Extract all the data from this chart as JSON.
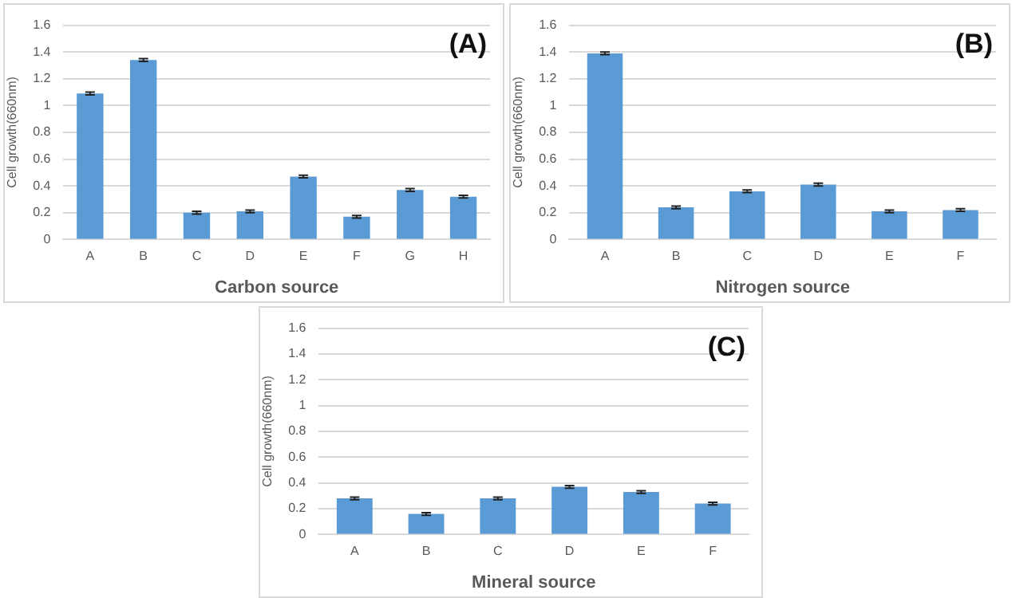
{
  "chart_data": [
    {
      "type": "bar",
      "title": "(A)",
      "xlabel": "Carbon source",
      "ylabel": "Cell growth(660nm)",
      "categories": [
        "A",
        "B",
        "C",
        "D",
        "E",
        "F",
        "G",
        "H"
      ],
      "values": [
        1.09,
        1.34,
        0.2,
        0.21,
        0.47,
        0.17,
        0.37,
        0.32
      ],
      "errors": [
        0.01,
        0.01,
        0.01,
        0.01,
        0.01,
        0.01,
        0.01,
        0.01
      ],
      "color": "#5b9bd5",
      "ylim": [
        0,
        1.6
      ],
      "yticks": [
        0,
        0.2,
        0.4,
        0.6,
        0.8,
        1,
        1.2,
        1.4,
        1.6
      ],
      "grid": "y",
      "legend": false
    },
    {
      "type": "bar",
      "title": "(B)",
      "xlabel": "Nitrogen source",
      "ylabel": "Cell growth(660nm)",
      "categories": [
        "A",
        "B",
        "C",
        "D",
        "E",
        "F"
      ],
      "values": [
        1.39,
        0.24,
        0.36,
        0.41,
        0.21,
        0.22
      ],
      "errors": [
        0.01,
        0.01,
        0.01,
        0.01,
        0.01,
        0.01
      ],
      "color": "#5b9bd5",
      "ylim": [
        0,
        1.6
      ],
      "yticks": [
        0,
        0.2,
        0.4,
        0.6,
        0.8,
        1,
        1.2,
        1.4,
        1.6
      ],
      "grid": "y",
      "legend": false
    },
    {
      "type": "bar",
      "title": "(C)",
      "xlabel": "Mineral source",
      "ylabel": "Cell growth(660nm)",
      "categories": [
        "A",
        "B",
        "C",
        "D",
        "E",
        "F"
      ],
      "values": [
        0.28,
        0.16,
        0.28,
        0.37,
        0.33,
        0.24
      ],
      "errors": [
        0.01,
        0.01,
        0.01,
        0.01,
        0.01,
        0.01
      ],
      "color": "#5b9bd5",
      "ylim": [
        0,
        1.6
      ],
      "yticks": [
        0,
        0.2,
        0.4,
        0.6,
        0.8,
        1,
        1.2,
        1.4,
        1.6
      ],
      "grid": "y",
      "legend": false
    }
  ]
}
